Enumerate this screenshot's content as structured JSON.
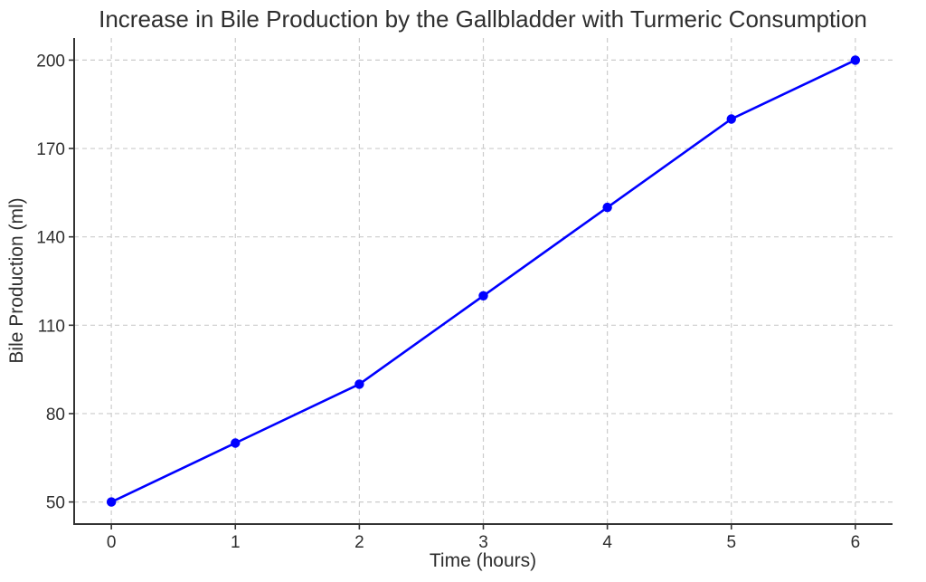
{
  "chart_data": {
    "type": "line",
    "title": "Increase in Bile Production by the Gallbladder with Turmeric Consumption",
    "xlabel": "Time (hours)",
    "ylabel": "Bile Production (ml)",
    "x": [
      0,
      1,
      2,
      3,
      4,
      5,
      6
    ],
    "series": [
      {
        "name": "Bile Production",
        "values": [
          50,
          70,
          90,
          120,
          150,
          180,
          200
        ],
        "color": "#0000ff",
        "marker": "circle"
      }
    ],
    "xticks": [
      0,
      1,
      2,
      3,
      4,
      5,
      6
    ],
    "yticks": [
      50,
      80,
      110,
      140,
      170,
      200
    ],
    "xlim": [
      -0.3,
      6.3
    ],
    "ylim": [
      42.5,
      207.5
    ],
    "grid": true,
    "grid_style": "dashed",
    "legend": false,
    "colors": {
      "line": "#0000ff",
      "grid": "#cccccc",
      "spine": "#333333",
      "text": "#2e2e2e"
    }
  }
}
